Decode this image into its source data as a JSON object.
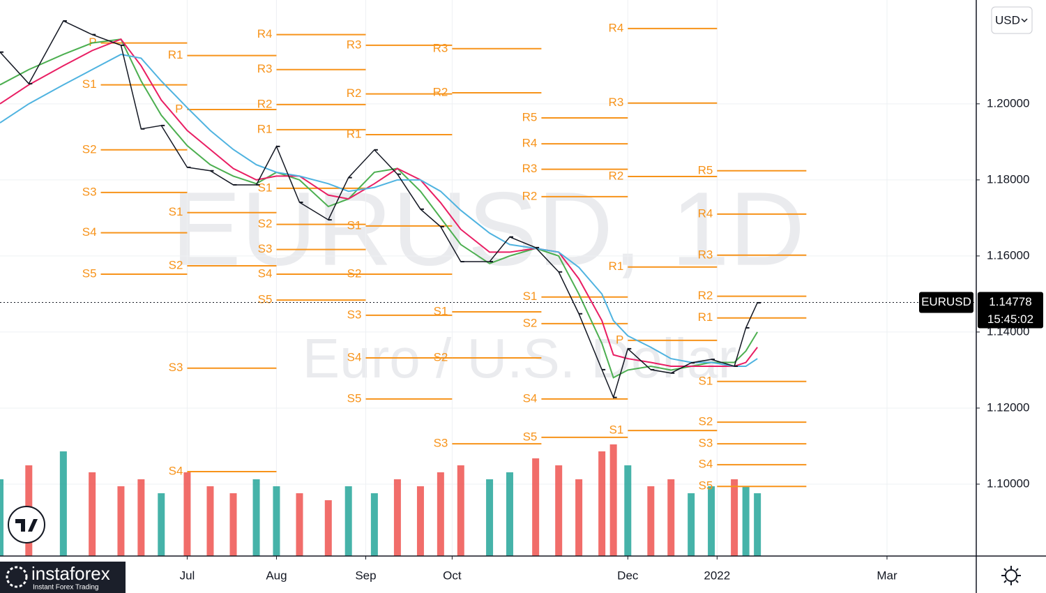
{
  "chart_data": {
    "type": "ohlc",
    "title": "EURUSD, 1D",
    "subtitle": "Euro / U.S. Dollar",
    "currency": "USD",
    "symbol": "EURUSD",
    "last": 1.14778,
    "countdown": "15:45:02",
    "brand": "instaforex",
    "brand_tagline": "Instant Forex Trading",
    "xlim": [
      -35,
      304
    ],
    "ylim": [
      1.0811,
      1.2273
    ],
    "xticks": [
      {
        "value": 30,
        "label": "Jul"
      },
      {
        "value": 61,
        "label": "Aug"
      },
      {
        "value": 92,
        "label": "Sep"
      },
      {
        "value": 122,
        "label": "Oct"
      },
      {
        "value": 183,
        "label": "Dec"
      },
      {
        "value": 214,
        "label": "2022"
      },
      {
        "value": 273,
        "label": "Mar"
      }
    ],
    "yticks": [
      {
        "value": 1.1,
        "label": "1.10000"
      },
      {
        "value": 1.12,
        "label": "1.12000"
      },
      {
        "value": 1.14,
        "label": "1.14000"
      },
      {
        "value": 1.16,
        "label": "1.16000"
      },
      {
        "value": 1.18,
        "label": "1.18000"
      },
      {
        "value": 1.2,
        "label": "1.20000"
      }
    ],
    "grid": true,
    "x": [
      -35,
      -25,
      -13,
      -3,
      7,
      14,
      21,
      30,
      38,
      46,
      54,
      61,
      69,
      79,
      86,
      95,
      103,
      111,
      118,
      125,
      135,
      142,
      151,
      159,
      166,
      174,
      178,
      183,
      191,
      198,
      205,
      212,
      220,
      224,
      228
    ],
    "close": [
      1.2136,
      1.2053,
      1.2218,
      1.2182,
      1.2154,
      1.1934,
      1.1943,
      1.1833,
      1.1824,
      1.1787,
      1.1787,
      1.1888,
      1.1741,
      1.1695,
      1.1806,
      1.1879,
      1.1815,
      1.1723,
      1.1677,
      1.1585,
      1.1585,
      1.165,
      1.1622,
      1.1558,
      1.1448,
      1.1301,
      1.1228,
      1.1356,
      1.1301,
      1.1292,
      1.1319,
      1.1328,
      1.131,
      1.1411,
      1.1477
    ],
    "close_color": "#131722",
    "series": [
      {
        "color": "#4caf50",
        "values": [
          1.205,
          1.209,
          1.213,
          1.216,
          1.217,
          1.206,
          1.197,
          1.189,
          1.184,
          1.181,
          1.179,
          1.182,
          1.18,
          1.173,
          1.175,
          1.182,
          1.183,
          1.177,
          1.17,
          1.163,
          1.158,
          1.16,
          1.162,
          1.16,
          1.15,
          1.137,
          1.128,
          1.13,
          1.131,
          1.13,
          1.131,
          1.132,
          1.132,
          1.135,
          1.14
        ]
      },
      {
        "color": "#e91e63",
        "values": [
          1.2,
          1.205,
          1.21,
          1.214,
          1.217,
          1.21,
          1.201,
          1.193,
          1.188,
          1.183,
          1.18,
          1.181,
          1.181,
          1.176,
          1.175,
          1.179,
          1.183,
          1.18,
          1.174,
          1.167,
          1.161,
          1.161,
          1.162,
          1.161,
          1.154,
          1.143,
          1.134,
          1.133,
          1.132,
          1.131,
          1.131,
          1.131,
          1.131,
          1.132,
          1.136
        ]
      },
      {
        "color": "#4fb3e0",
        "values": [
          1.195,
          1.2,
          1.205,
          1.209,
          1.213,
          1.212,
          1.206,
          1.199,
          1.193,
          1.188,
          1.184,
          1.182,
          1.181,
          1.179,
          1.177,
          1.178,
          1.18,
          1.18,
          1.177,
          1.172,
          1.166,
          1.163,
          1.162,
          1.161,
          1.157,
          1.15,
          1.143,
          1.139,
          1.136,
          1.133,
          1.132,
          1.132,
          1.131,
          1.131,
          1.133
        ]
      }
    ],
    "volume": [
      110,
      130,
      150,
      120,
      100,
      110,
      90,
      120,
      100,
      90,
      110,
      100,
      90,
      80,
      100,
      90,
      110,
      100,
      120,
      130,
      110,
      120,
      140,
      130,
      110,
      150,
      160,
      130,
      100,
      110,
      90,
      100,
      110,
      100,
      90
    ],
    "volume_colors": [
      "#26a69a",
      "#ef5350"
    ],
    "pivot_color": "#f7931a",
    "pivots": [
      {
        "x": [
          0,
          30
        ],
        "levels": [
          {
            "label": "P",
            "value": 1.216
          },
          {
            "label": "S1",
            "value": 1.205
          },
          {
            "label": "S2",
            "value": 1.1879
          },
          {
            "label": "S3",
            "value": 1.1767
          },
          {
            "label": "S4",
            "value": 1.1661
          },
          {
            "label": "S5",
            "value": 1.1552
          }
        ]
      },
      {
        "x": [
          30,
          61
        ],
        "levels": [
          {
            "label": "R1",
            "value": 1.2127
          },
          {
            "label": "P",
            "value": 1.1985
          },
          {
            "label": "S1",
            "value": 1.1714
          },
          {
            "label": "S2",
            "value": 1.1574
          },
          {
            "label": "S3",
            "value": 1.1305
          },
          {
            "label": "S4",
            "value": 1.1033
          }
        ]
      },
      {
        "x": [
          61,
          92
        ],
        "levels": [
          {
            "label": "R4",
            "value": 1.2182
          },
          {
            "label": "R3",
            "value": 1.209
          },
          {
            "label": "R2",
            "value": 1.1998
          },
          {
            "label": "R1",
            "value": 1.1932
          },
          {
            "label": "S1",
            "value": 1.1778
          },
          {
            "label": "S2",
            "value": 1.1683
          },
          {
            "label": "S3",
            "value": 1.1617
          },
          {
            "label": "S4",
            "value": 1.1552
          },
          {
            "label": "S5",
            "value": 1.1484
          }
        ]
      },
      {
        "x": [
          92,
          122
        ],
        "levels": [
          {
            "label": "R3",
            "value": 1.2154
          },
          {
            "label": "R2",
            "value": 1.2026
          },
          {
            "label": "R1",
            "value": 1.1919
          },
          {
            "label": "S1",
            "value": 1.1679
          },
          {
            "label": "S2",
            "value": 1.1552
          },
          {
            "label": "S3",
            "value": 1.1444
          },
          {
            "label": "S4",
            "value": 1.1332
          },
          {
            "label": "S5",
            "value": 1.1224
          }
        ]
      },
      {
        "x": [
          122,
          153
        ],
        "levels": [
          {
            "label": "R3",
            "value": 1.2145
          },
          {
            "label": "R2",
            "value": 1.2029
          },
          {
            "label": "S1",
            "value": 1.1453
          },
          {
            "label": "S2",
            "value": 1.1332
          },
          {
            "label": "S3",
            "value": 1.1106
          }
        ]
      },
      {
        "x": [
          153,
          183
        ],
        "levels": [
          {
            "label": "R5",
            "value": 1.1963
          },
          {
            "label": "R4",
            "value": 1.1895
          },
          {
            "label": "R3",
            "value": 1.1828
          },
          {
            "label": "R2",
            "value": 1.1756
          },
          {
            "label": "S1",
            "value": 1.1492
          },
          {
            "label": "S2",
            "value": 1.1422
          },
          {
            "label": "S4",
            "value": 1.1224
          },
          {
            "label": "S5",
            "value": 1.1123
          }
        ]
      },
      {
        "x": [
          183,
          214
        ],
        "levels": [
          {
            "label": "R4",
            "value": 1.2198
          },
          {
            "label": "R3",
            "value": 1.2002
          },
          {
            "label": "R2",
            "value": 1.1809
          },
          {
            "label": "R1",
            "value": 1.1571
          },
          {
            "label": "P",
            "value": 1.1378
          },
          {
            "label": "S1",
            "value": 1.1141
          }
        ]
      },
      {
        "x": [
          214,
          245
        ],
        "levels": [
          {
            "label": "R5",
            "value": 1.1824
          },
          {
            "label": "R4",
            "value": 1.171
          },
          {
            "label": "R3",
            "value": 1.1602
          },
          {
            "label": "R2",
            "value": 1.1494
          },
          {
            "label": "R1",
            "value": 1.1437
          },
          {
            "label": "S1",
            "value": 1.127
          },
          {
            "label": "S2",
            "value": 1.1163
          },
          {
            "label": "S3",
            "value": 1.1106
          },
          {
            "label": "S4",
            "value": 1.1051
          },
          {
            "label": "S5",
            "value": 1.0994
          }
        ]
      }
    ]
  }
}
